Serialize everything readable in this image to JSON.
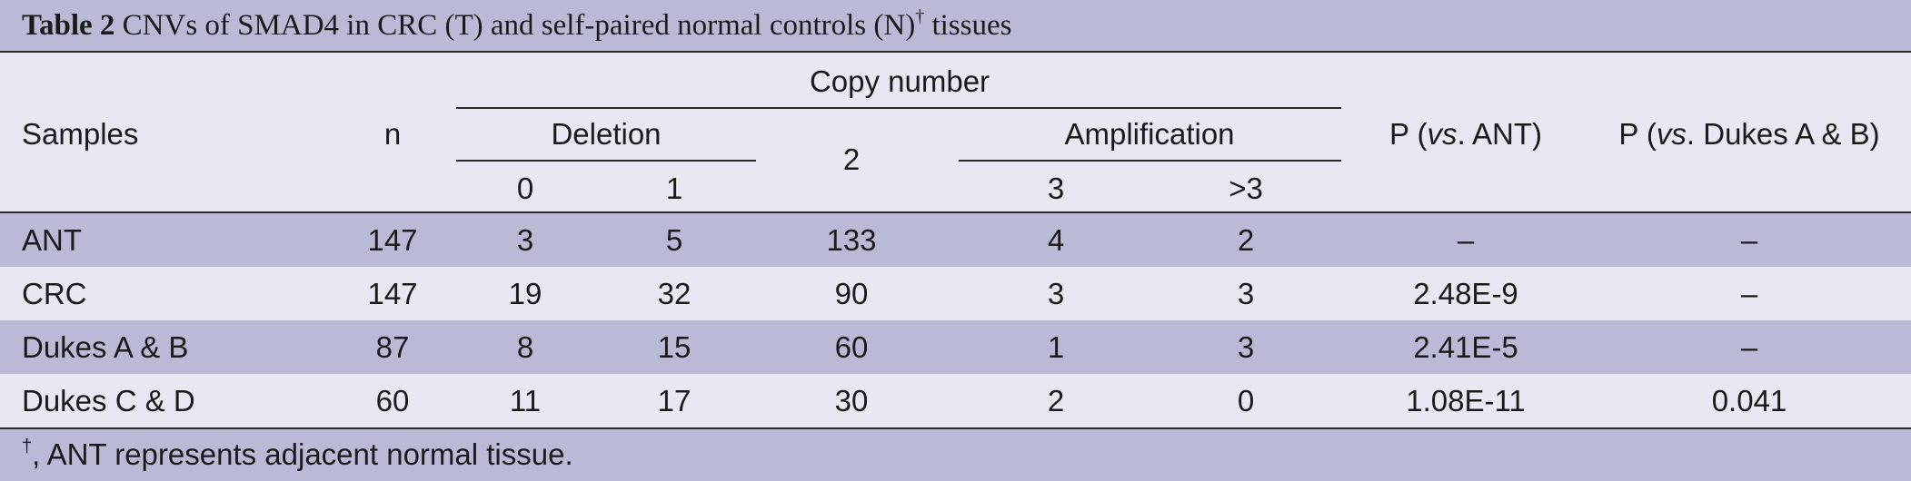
{
  "caption": {
    "label": "Table 2",
    "text": "CNVs of SMAD4 in CRC (T) and self-paired normal controls (N)",
    "dagger": "†",
    "suffix": "tissues"
  },
  "header": {
    "samples": "Samples",
    "n": "n",
    "copy_number": "Copy number",
    "deletion": "Deletion",
    "amplification": "Amplification",
    "col_0": "0",
    "col_1": "1",
    "col_2": "2",
    "col_3": "3",
    "col_gt3": ">3",
    "p_ant_prefix": "P (",
    "p_ant_vs": "vs",
    "p_ant_suffix": ". ANT)",
    "p_dukes_prefix": "P (",
    "p_dukes_vs": "vs",
    "p_dukes_suffix": ". Dukes A & B)"
  },
  "rows": [
    {
      "sample": "ANT",
      "n": "147",
      "c0": "3",
      "c1": "5",
      "c2": "133",
      "c3": "4",
      "c4": "2",
      "p_ant": "–",
      "p_dukes": "–"
    },
    {
      "sample": "CRC",
      "n": "147",
      "c0": "19",
      "c1": "32",
      "c2": "90",
      "c3": "3",
      "c4": "3",
      "p_ant": "2.48E-9",
      "p_dukes": "–"
    },
    {
      "sample": "Dukes A & B",
      "n": "87",
      "c0": "8",
      "c1": "15",
      "c2": "60",
      "c3": "1",
      "c4": "3",
      "p_ant": "2.41E-5",
      "p_dukes": "–"
    },
    {
      "sample": "Dukes C & D",
      "n": "60",
      "c0": "11",
      "c1": "17",
      "c2": "30",
      "c3": "2",
      "c4": "0",
      "p_ant": "1.08E-11",
      "p_dukes": "0.041"
    }
  ],
  "footnote": {
    "dagger": "†",
    "text": ", ANT represents adjacent normal tissue."
  }
}
